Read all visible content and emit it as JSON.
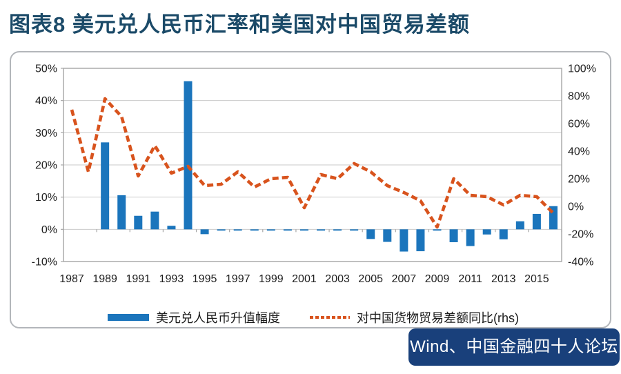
{
  "header": {
    "title": "图表8 美元兑人民币汇率和美国对中国贸易差额"
  },
  "footer": {
    "source": "Wind、中国金融四十人论坛"
  },
  "colors": {
    "bar_blue": "#1B75BC",
    "line_orange": "#D8531D",
    "title_navy": "#1B4A68",
    "source_badge_blue": "#19407B",
    "gridline_grey": "#C9C9C9",
    "plot_border_grey": "#A6A6A6",
    "axis_text": "#1f1f1f"
  },
  "chart_data": {
    "type": "combo-bar-line",
    "grid": true,
    "legend_position": "bottom",
    "categories": [
      1987,
      1988,
      1989,
      1990,
      1991,
      1992,
      1993,
      1994,
      1995,
      1996,
      1997,
      1998,
      1999,
      2000,
      2001,
      2002,
      2003,
      2004,
      2005,
      2006,
      2007,
      2008,
      2009,
      2010,
      2011,
      2012,
      2013,
      2014,
      2015,
      2016
    ],
    "x_tick_labels": [
      "1987",
      "1989",
      "1991",
      "1993",
      "1995",
      "1997",
      "1999",
      "2001",
      "2003",
      "2005",
      "2007",
      "2009",
      "2011",
      "2013",
      "2015"
    ],
    "series": [
      {
        "name": "美元兑人民币升值幅度",
        "type": "bar",
        "axis": "left",
        "color": "#1B75BC",
        "values": [
          0,
          0,
          27,
          10.6,
          4.2,
          5.5,
          1.1,
          46,
          -1.5,
          -0.4,
          -0.4,
          -0.4,
          -0.4,
          -0.4,
          -0.4,
          -0.4,
          -0.4,
          -0.4,
          -3.0,
          -3.9,
          -6.9,
          -6.8,
          -0.4,
          -4.0,
          -5.2,
          -1.6,
          -3.1,
          2.5,
          4.8,
          7.2
        ]
      },
      {
        "name": "对中国货物贸易差额同比(rhs)",
        "type": "line",
        "line_style": "dashed",
        "axis": "right",
        "color": "#D8531D",
        "values": [
          70,
          25,
          78,
          65,
          22,
          44,
          24,
          29,
          15,
          16,
          25,
          14,
          20,
          21,
          -1,
          23,
          20,
          31,
          25,
          15,
          10,
          4,
          -15,
          20,
          8,
          7,
          1,
          8,
          7,
          -5
        ]
      }
    ],
    "left_axis": {
      "min": -10,
      "max": 50,
      "step": 10,
      "tick_labels": [
        "50%",
        "40%",
        "30%",
        "20%",
        "10%",
        "0%",
        "-10%"
      ]
    },
    "right_axis": {
      "min": -40,
      "max": 100,
      "step": 20,
      "tick_labels": [
        "100%",
        "80%",
        "60%",
        "40%",
        "20%",
        "0%",
        "-20%",
        "-40%"
      ]
    }
  }
}
